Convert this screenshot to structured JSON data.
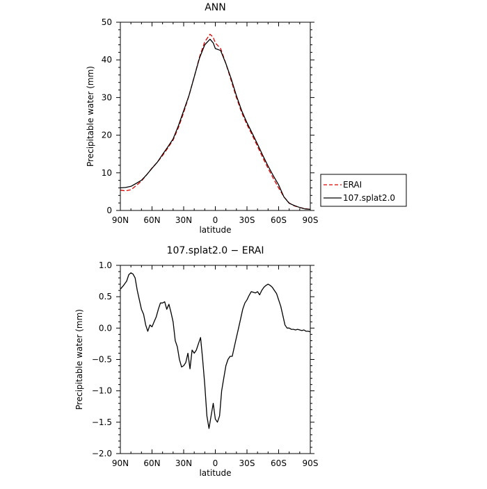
{
  "chart_data": [
    {
      "type": "line",
      "title": "ANN",
      "xlabel": "latitude",
      "ylabel": "Precipitable water (mm)",
      "xlim": [
        90,
        -90
      ],
      "ylim": [
        0,
        50
      ],
      "xticks": [
        90,
        60,
        30,
        0,
        -30,
        -60,
        -90
      ],
      "xtick_labels": [
        "90N",
        "60N",
        "30N",
        "0",
        "30S",
        "60S",
        "90S"
      ],
      "yticks": [
        0,
        10,
        20,
        30,
        40,
        50
      ],
      "ytick_labels": [
        "0",
        "10",
        "20",
        "30",
        "40",
        "50"
      ],
      "legend": "outside-right-bottom",
      "series": [
        {
          "name": "ERAI",
          "color": "#e00000",
          "style": "dashed",
          "x": [
            90,
            85,
            80,
            75,
            70,
            65,
            60,
            55,
            50,
            45,
            40,
            35,
            30,
            25,
            20,
            15,
            10,
            5,
            2,
            0,
            -5,
            -10,
            -15,
            -20,
            -25,
            -30,
            -35,
            -40,
            -45,
            -50,
            -55,
            -60,
            -65,
            -70,
            -75,
            -80,
            -85,
            -90
          ],
          "values": [
            5.4,
            5.2,
            5.5,
            6.6,
            7.8,
            9.5,
            11.3,
            12.8,
            14.6,
            16.6,
            18.7,
            22.0,
            26.0,
            30.5,
            35.5,
            40.8,
            44.8,
            46.8,
            46.0,
            44.5,
            43.0,
            39.0,
            34.5,
            30.0,
            26.0,
            22.8,
            20.0,
            17.0,
            14.0,
            11.2,
            8.5,
            6.0,
            3.6,
            2.0,
            1.2,
            0.8,
            0.5,
            0.3
          ]
        },
        {
          "name": "107.splat2.0",
          "color": "#000000",
          "style": "solid",
          "x": [
            90,
            85,
            80,
            75,
            70,
            65,
            60,
            55,
            50,
            45,
            40,
            35,
            30,
            25,
            20,
            15,
            10,
            5,
            2,
            0,
            -5,
            -10,
            -15,
            -20,
            -25,
            -30,
            -35,
            -40,
            -45,
            -50,
            -55,
            -60,
            -65,
            -70,
            -75,
            -80,
            -85,
            -90
          ],
          "values": [
            6.0,
            6.1,
            6.4,
            7.2,
            8.0,
            9.5,
            11.2,
            12.8,
            14.9,
            16.9,
            19.0,
            22.5,
            26.5,
            30.5,
            35.5,
            40.5,
            44.0,
            45.5,
            44.5,
            43.0,
            42.5,
            39.0,
            35.0,
            30.5,
            26.5,
            23.3,
            20.5,
            17.6,
            14.6,
            11.8,
            9.2,
            6.8,
            3.6,
            1.9,
            1.3,
            0.8,
            0.4,
            0.3
          ]
        }
      ]
    },
    {
      "type": "line",
      "title": "107.splat2.0 − ERAI",
      "xlabel": "latitude",
      "ylabel": "Precipitable water (mm)",
      "xlim": [
        90,
        -90
      ],
      "ylim": [
        -2.0,
        1.0
      ],
      "xticks": [
        90,
        60,
        30,
        0,
        -30,
        -60,
        -90
      ],
      "xtick_labels": [
        "90N",
        "60N",
        "30N",
        "0",
        "30S",
        "60S",
        "90S"
      ],
      "yticks": [
        1.0,
        0.5,
        0.0,
        -0.5,
        -1.0,
        -1.5,
        -2.0
      ],
      "ytick_labels": [
        "1.0",
        "0.5",
        "0.0",
        "−0.5",
        "−1.0",
        "−1.5",
        "−2.0"
      ],
      "series": [
        {
          "color": "#000000",
          "style": "solid",
          "x": [
            90,
            87,
            84,
            82,
            80,
            78,
            76,
            74,
            72,
            70,
            68,
            66,
            64,
            62,
            60,
            58,
            56,
            54,
            52,
            50,
            48,
            46,
            44,
            42,
            40,
            38,
            36,
            34,
            32,
            30,
            28,
            26,
            24,
            22,
            20,
            18,
            16,
            14,
            12,
            10,
            8,
            6,
            4,
            2,
            0,
            -2,
            -4,
            -6,
            -8,
            -10,
            -12,
            -14,
            -16,
            -18,
            -20,
            -22,
            -24,
            -26,
            -28,
            -30,
            -32,
            -34,
            -36,
            -38,
            -40,
            -42,
            -44,
            -46,
            -48,
            -50,
            -52,
            -54,
            -56,
            -58,
            -60,
            -62,
            -64,
            -66,
            -68,
            -70,
            -72,
            -74,
            -76,
            -78,
            -80,
            -82,
            -84,
            -86,
            -88,
            -90
          ],
          "values": [
            0.62,
            0.68,
            0.75,
            0.85,
            0.88,
            0.86,
            0.8,
            0.6,
            0.45,
            0.3,
            0.22,
            0.05,
            -0.05,
            0.05,
            0.02,
            0.1,
            0.18,
            0.3,
            0.4,
            0.4,
            0.42,
            0.3,
            0.38,
            0.25,
            0.1,
            -0.2,
            -0.3,
            -0.5,
            -0.62,
            -0.6,
            -0.55,
            -0.4,
            -0.65,
            -0.35,
            -0.4,
            -0.35,
            -0.25,
            -0.15,
            -0.5,
            -0.9,
            -1.4,
            -1.6,
            -1.4,
            -1.2,
            -1.45,
            -1.5,
            -1.4,
            -1.0,
            -0.8,
            -0.6,
            -0.5,
            -0.45,
            -0.45,
            -0.3,
            -0.15,
            0.0,
            0.15,
            0.3,
            0.4,
            0.45,
            0.52,
            0.58,
            0.57,
            0.56,
            0.58,
            0.53,
            0.6,
            0.65,
            0.68,
            0.7,
            0.68,
            0.65,
            0.6,
            0.55,
            0.45,
            0.35,
            0.2,
            0.05,
            0.0,
            0.0,
            -0.02,
            -0.02,
            -0.03,
            -0.02,
            -0.03,
            -0.04,
            -0.03,
            -0.05,
            -0.05,
            -0.06
          ]
        }
      ]
    }
  ]
}
